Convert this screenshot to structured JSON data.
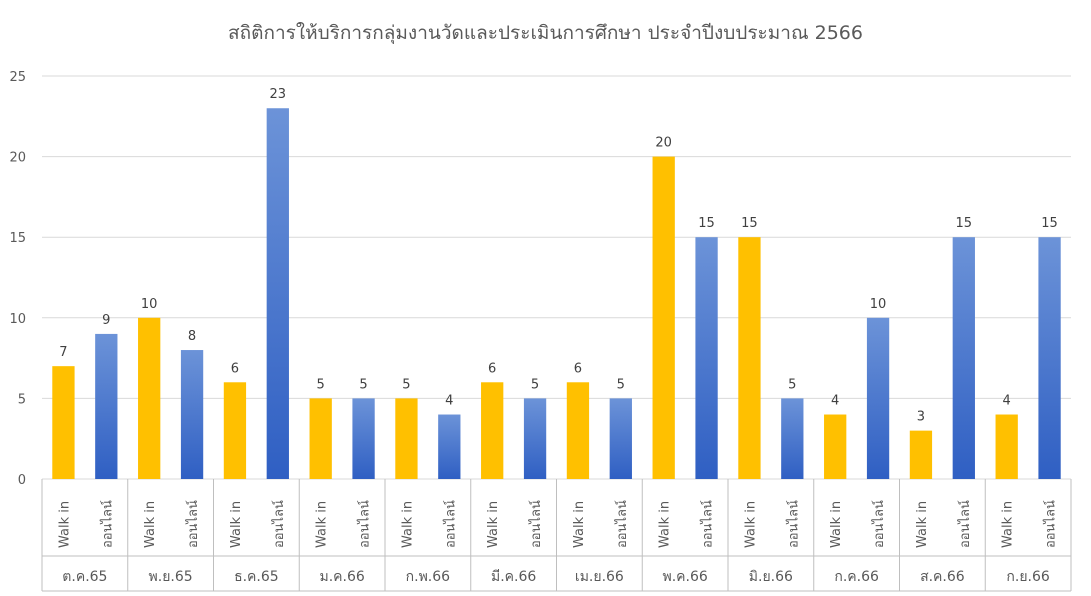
{
  "chart_data": {
    "type": "bar",
    "title": "สถิติการให้บริการกลุ่มงานวัดและประเมินการศึกษา ประจำปีงบประมาณ 2566",
    "months": [
      "ต.ค.65",
      "พ.ย.65",
      "ธ.ค.65",
      "ม.ค.66",
      "ก.พ.66",
      "มี.ค.66",
      "เม.ย.66",
      "พ.ค.66",
      "มิ.ย.66",
      "ก.ค.66",
      "ส.ค.66",
      "ก.ย.66"
    ],
    "subcategories": [
      "Walk in",
      "ออนไลน์"
    ],
    "series": [
      {
        "values": [
          7,
          10,
          6,
          5,
          5,
          6,
          6,
          20,
          15,
          4,
          3,
          4
        ]
      },
      {
        "values": [
          9,
          8,
          23,
          5,
          4,
          5,
          5,
          15,
          5,
          10,
          15,
          15
        ]
      }
    ],
    "ylim": [
      0,
      25
    ],
    "yticks": [
      0,
      5,
      10,
      15,
      20,
      25
    ],
    "grid": true,
    "colors": {
      "walk_in": "#FFC000",
      "online_top": "#6C93D8",
      "online_bottom": "#2F5FC3",
      "grid": "#D9D9D9",
      "axis": "#BFBFBF"
    }
  }
}
